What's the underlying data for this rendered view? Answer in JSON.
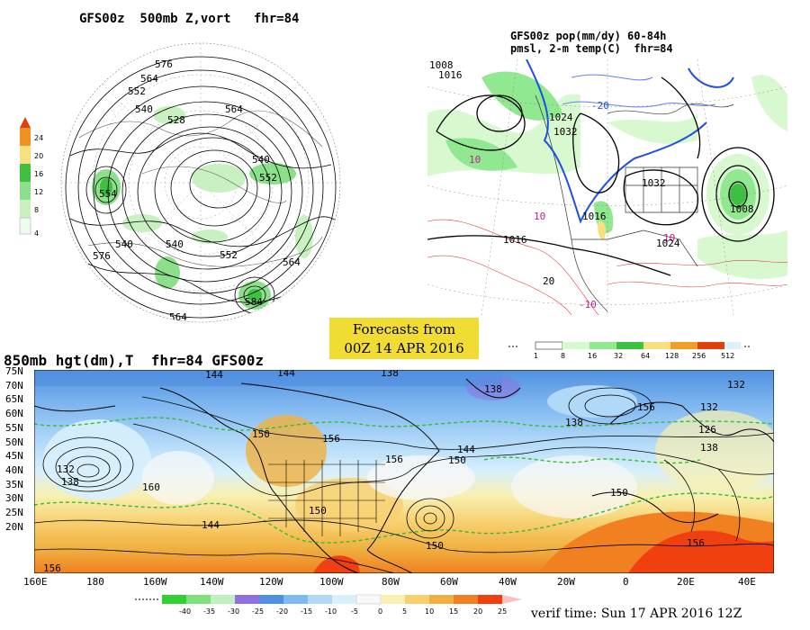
{
  "panels": {
    "top_left": {
      "title": "GFS00z  500mb Z,vort   fhr=84",
      "vort_scale": [
        "4",
        "8",
        "12",
        "16",
        "20",
        "24"
      ],
      "contour_labels": [
        "576",
        "564",
        "552",
        "540",
        "528",
        "540",
        "552",
        "564",
        "576",
        "540",
        "552",
        "564",
        "576",
        "584",
        "554",
        "540",
        "564"
      ]
    },
    "top_right": {
      "title_line1": "GFS00z pop(mm/dy) 60-84h",
      "title_line2": "pmsl, 2-m temp(C)  fhr=84",
      "labels": [
        "1008",
        "1016",
        "1024",
        "1032",
        "1016",
        "1008",
        "-20",
        "10",
        "10",
        "10",
        "20",
        "-10",
        "1024",
        "1032",
        "1016"
      ]
    },
    "bottom": {
      "title": "850mb hgt(dm),T  fhr=84 GFS00z",
      "lat_labels": [
        "75N",
        "70N",
        "65N",
        "60N",
        "55N",
        "50N",
        "45N",
        "40N",
        "35N",
        "30N",
        "25N",
        "20N"
      ],
      "lon_labels": [
        "160E",
        "180",
        "160W",
        "140W",
        "120W",
        "100W",
        "80W",
        "60W",
        "40W",
        "20W",
        "0",
        "20E",
        "40E"
      ],
      "height_labels": [
        "144",
        "144",
        "138",
        "138",
        "132",
        "126",
        "150",
        "156",
        "156",
        "150",
        "144",
        "138",
        "132",
        "150",
        "156",
        "144",
        "160",
        "150",
        "156",
        "138",
        "150",
        "132",
        "138",
        "156"
      ],
      "temp_scale": [
        "-40",
        "-35",
        "-30",
        "-25",
        "-20",
        "-15",
        "-10",
        "-5",
        "0",
        "5",
        "10",
        "15",
        "20",
        "25"
      ]
    }
  },
  "forecast_box": {
    "line1": "Forecasts from",
    "line2": "00Z 14 APR 2016"
  },
  "pop_scale": [
    "1",
    "8",
    "16",
    "32",
    "64",
    "128",
    "256",
    "512"
  ],
  "verif_time": "verif time: Sun 17 APR 2016 12Z",
  "colors": {
    "vort": [
      "#f8f8f8",
      "#c8f0c0",
      "#8ce08c",
      "#40c040",
      "#f8e080",
      "#f09020",
      "#e04010"
    ],
    "temp": [
      "#30d030",
      "#80e080",
      "#c0f0c0",
      "#9070e0",
      "#5090e0",
      "#80b8f0",
      "#b0d8f8",
      "#d8f0fc",
      "#f8f8f8",
      "#f8f0b0",
      "#f8d070",
      "#f0b040",
      "#f08020",
      "#f04010",
      "#f8c0c0"
    ],
    "pop": [
      "#ffffff",
      "#d8f8d0",
      "#90e890",
      "#40c040",
      "#f8e080",
      "#f0a020",
      "#e04010",
      "#d8f4f8"
    ]
  }
}
